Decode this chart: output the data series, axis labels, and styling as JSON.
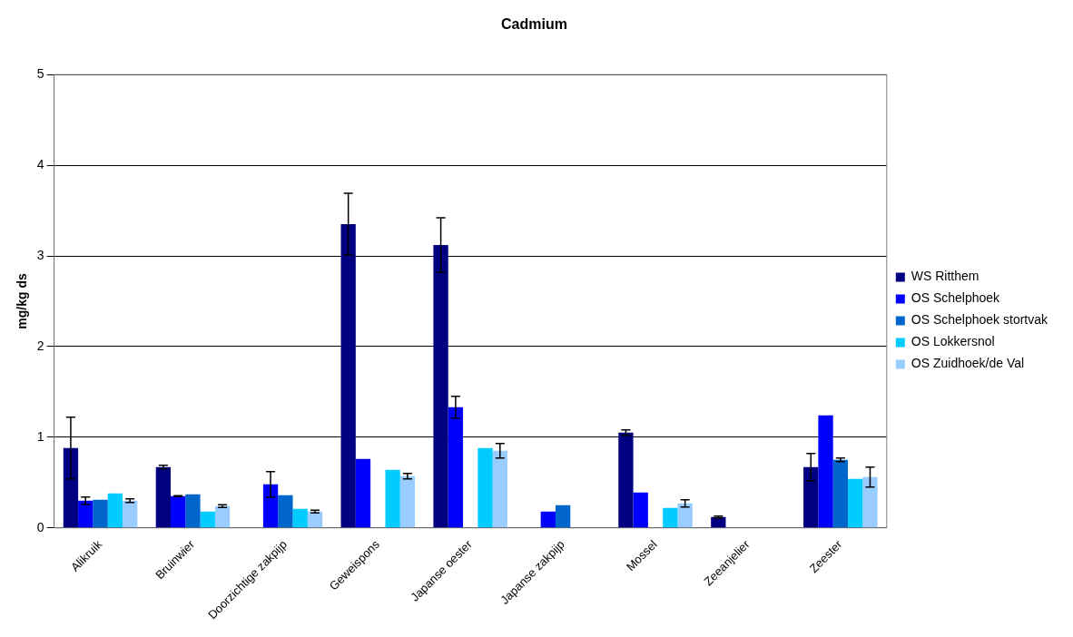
{
  "chart_data": {
    "type": "bar",
    "title": "Cadmium",
    "ylabel": "mg/kg ds",
    "categories": [
      "Alikruik",
      "Bruinwier",
      "Doorzichtige zakpijp",
      "Geweispons",
      "Japanse oester",
      "Japanse zakpijp",
      "Mossel",
      "Zeeanjelier",
      "Zeester"
    ],
    "series": [
      {
        "name": "WS Ritthem",
        "color": "#000080",
        "values": [
          0.88,
          0.67,
          null,
          3.35,
          3.12,
          null,
          1.05,
          0.12,
          0.67
        ],
        "errors": [
          0.34,
          0.02,
          null,
          0.34,
          0.3,
          null,
          0.03,
          0.01,
          0.15
        ]
      },
      {
        "name": "OS Schelphoek",
        "color": "#0000ff",
        "values": [
          0.3,
          0.35,
          0.48,
          0.76,
          1.33,
          0.18,
          0.39,
          null,
          1.24
        ],
        "errors": [
          0.04,
          0.005,
          0.14,
          null,
          0.12,
          null,
          null,
          null,
          null
        ]
      },
      {
        "name": "OS Schelphoek stortvak",
        "color": "#0066cc",
        "values": [
          0.31,
          0.37,
          0.36,
          null,
          null,
          0.25,
          null,
          null,
          0.75
        ],
        "errors": [
          null,
          null,
          null,
          null,
          null,
          null,
          null,
          null,
          0.02
        ]
      },
      {
        "name": "OS Lokkersnol",
        "color": "#00ccff",
        "values": [
          0.38,
          0.18,
          0.21,
          0.64,
          0.88,
          null,
          0.22,
          null,
          0.54
        ]
      },
      {
        "name": "OS Zuidhoek/de Val",
        "color": "#99ccff",
        "values": [
          0.3,
          0.24,
          0.18,
          0.57,
          0.85,
          null,
          0.27,
          null,
          0.56
        ],
        "errors": [
          0.02,
          0.015,
          0.015,
          0.03,
          0.08,
          null,
          0.04,
          null,
          0.11
        ]
      }
    ],
    "ylim": [
      0,
      5
    ],
    "yticks": [
      0,
      1,
      2,
      3,
      4,
      5
    ],
    "grid": "y",
    "legend": "right"
  }
}
